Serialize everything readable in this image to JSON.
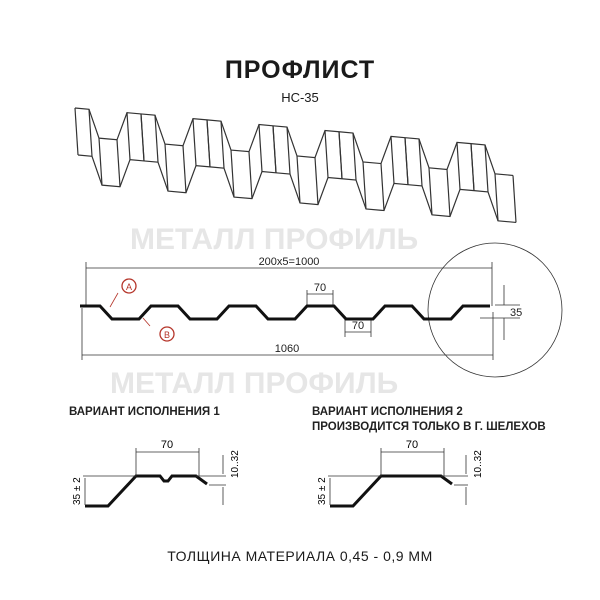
{
  "title": "ПРОФЛИСТ",
  "subtitle": "НС-35",
  "watermark": "МЕТАЛЛ ПРОФИЛЬ",
  "profile": {
    "width_label": "200x5=1000",
    "total_label": "1060",
    "top_flat_label": "70",
    "bottom_flat_label": "70",
    "height_label": "35",
    "marker_a": "A",
    "marker_b": "B"
  },
  "variant1": {
    "title": "ВАРИАНТ ИСПОЛНЕНИЯ 1",
    "flat_label": "70",
    "height_label": "35 ± 2",
    "step_label": "10..32"
  },
  "variant2": {
    "title": "ВАРИАНТ ИСПОЛНЕНИЯ 2",
    "note": "ПРОИЗВОДИТСЯ ТОЛЬКО В Г. ШЕЛЕХОВ",
    "flat_label": "70",
    "height_label": "35 ± 2",
    "step_label": "10..32"
  },
  "footer": "ТОЛЩИНА МАТЕРИАЛА 0,45 - 0,9 ММ",
  "colors": {
    "line": "#1a1a1a",
    "marker": "#b5352a",
    "watermark": "#e4e4e4"
  }
}
